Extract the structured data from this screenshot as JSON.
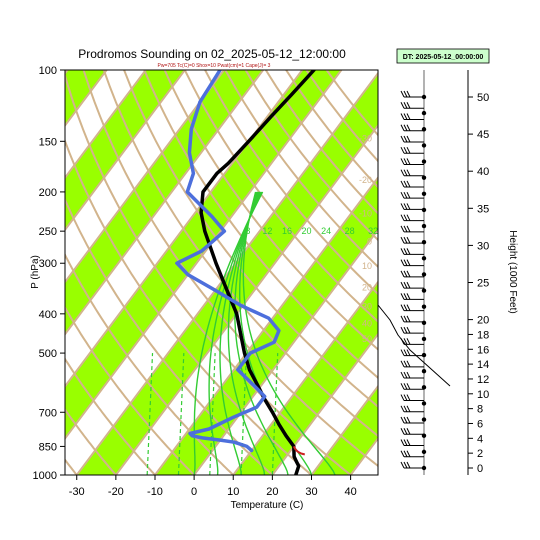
{
  "chart_data": {
    "type": "skew-t sounding",
    "title": "Prodromos Sounding on 02_2025-05-12_12:00:00",
    "subtitle": "Pw=705 Tc(C)=0 Shox=10 Pwat(cm)=1 Cape(J)= 3",
    "datetime_label": "DT: 2025-05-12_00:00:00",
    "xlabel": "Temperature (C)",
    "ylabel": "P (hPa)",
    "y2label": "Height (1000 Feet)",
    "xlim": [
      -33,
      47
    ],
    "ylim": [
      1000,
      100
    ],
    "x_ticks": [
      "-30",
      "-20",
      "-10",
      "0",
      "10",
      "20",
      "30",
      "40"
    ],
    "y_ticks": [
      "100",
      "150",
      "200",
      "250",
      "300",
      "400",
      "500",
      "700",
      "850",
      "1000"
    ],
    "height_ticks": [
      "0",
      "2",
      "4",
      "6",
      "8",
      "10",
      "12",
      "14",
      "16",
      "18",
      "20",
      "25",
      "30",
      "35",
      "40",
      "45",
      "50"
    ],
    "mixing_ratio_labels": [
      "8",
      "12",
      "16",
      "20",
      "24",
      "28",
      "32"
    ],
    "dry_adiabat_labels": [
      "-30",
      "-20",
      "-10",
      "0",
      "10",
      "20",
      "30",
      "40",
      "50"
    ],
    "colors": {
      "temperature": "#000000",
      "dewpoint": "#4d6fdc",
      "isotherm_band": "#99ff00",
      "isotherm_line": "#d2b48c",
      "mixing_ratio": "#33cc33",
      "surface_parcel": "#cc2222",
      "datetime_box": "#ccffcc"
    },
    "series": [
      {
        "name": "Temperature",
        "points": [
          [
            1000,
            26
          ],
          [
            950,
            25
          ],
          [
            925,
            23.5
          ],
          [
            900,
            22
          ],
          [
            850,
            20
          ],
          [
            800,
            16
          ],
          [
            750,
            12
          ],
          [
            700,
            8
          ],
          [
            650,
            3.5
          ],
          [
            600,
            -1
          ],
          [
            550,
            -6
          ],
          [
            500,
            -10.5
          ],
          [
            450,
            -15
          ],
          [
            400,
            -20
          ],
          [
            350,
            -27
          ],
          [
            300,
            -35
          ],
          [
            250,
            -44
          ],
          [
            225,
            -48.5
          ],
          [
            200,
            -52
          ],
          [
            180,
            -52
          ],
          [
            170,
            -51
          ],
          [
            150,
            -50
          ],
          [
            130,
            -49
          ],
          [
            115,
            -48
          ],
          [
            100,
            -47
          ]
        ]
      },
      {
        "name": "Dewpoint",
        "points": [
          [
            870,
            10
          ],
          [
            850,
            8
          ],
          [
            830,
            4
          ],
          [
            820,
            0
          ],
          [
            810,
            -5
          ],
          [
            800,
            -8
          ],
          [
            790,
            -9
          ],
          [
            770,
            -5
          ],
          [
            720,
            -1
          ],
          [
            680,
            3
          ],
          [
            640,
            3
          ],
          [
            600,
            -2
          ],
          [
            550,
            -9
          ],
          [
            500,
            -9
          ],
          [
            470,
            -5
          ],
          [
            440,
            -6
          ],
          [
            410,
            -11
          ],
          [
            380,
            -21
          ],
          [
            350,
            -30
          ],
          [
            320,
            -40
          ],
          [
            300,
            -45
          ],
          [
            280,
            -41
          ],
          [
            250,
            -39
          ],
          [
            230,
            -45
          ],
          [
            200,
            -56
          ],
          [
            180,
            -58
          ],
          [
            160,
            -63
          ],
          [
            140,
            -67
          ],
          [
            120,
            -70
          ],
          [
            100,
            -71
          ]
        ]
      }
    ],
    "wind_barb_count": 34,
    "height_dot_count": 24
  }
}
